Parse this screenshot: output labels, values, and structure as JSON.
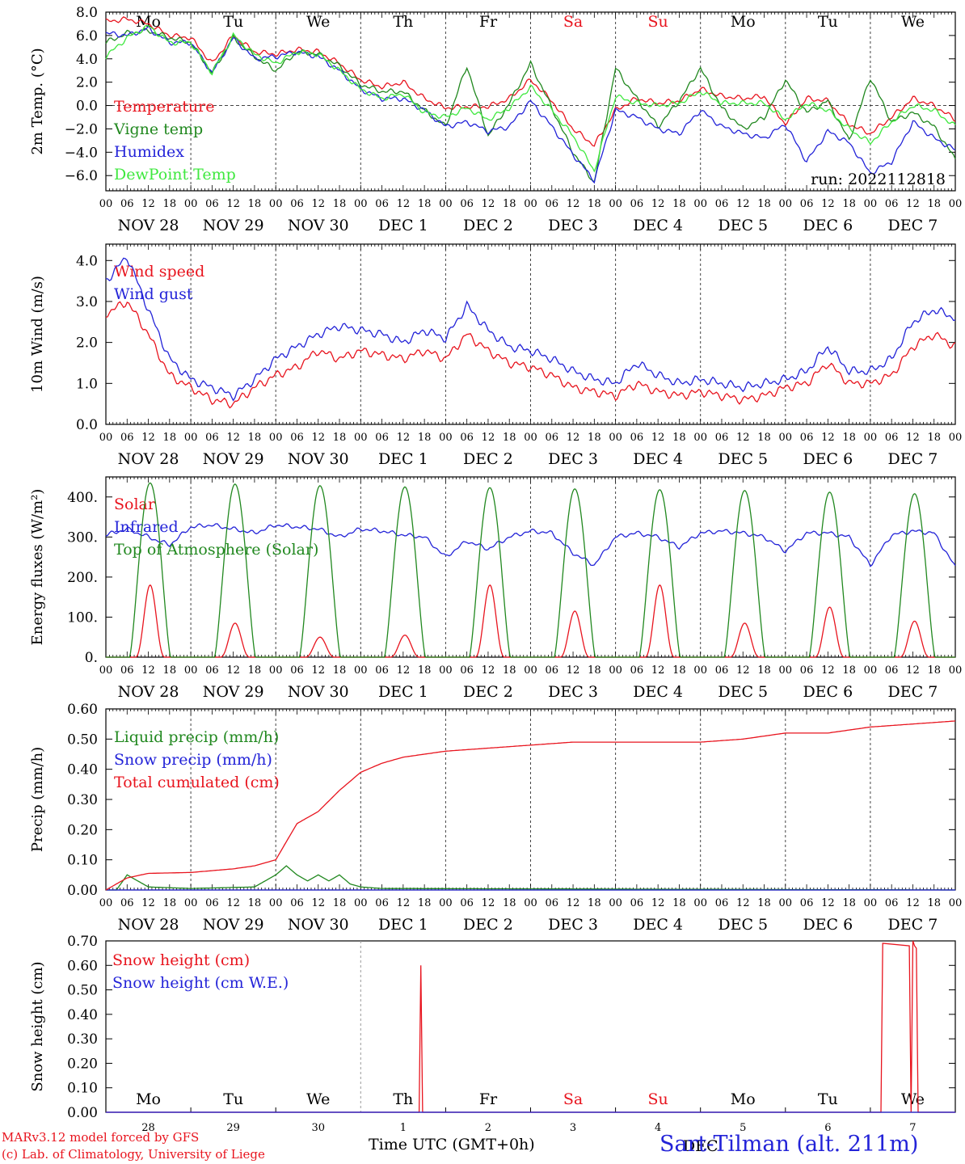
{
  "colors": {
    "red": "#e8141e",
    "green": "#21881f",
    "blue": "#2323d8",
    "lightgreen": "#3fe83f",
    "weekend": "#e8141e"
  },
  "days": [
    "Mo",
    "Tu",
    "We",
    "Th",
    "Fr",
    "Sa",
    "Su",
    "Mo",
    "Tu",
    "We"
  ],
  "weekend_days": [
    "Sa",
    "Su"
  ],
  "date_labels": [
    "NOV 28",
    "NOV 29",
    "NOV 30",
    "DEC  1",
    "DEC  2",
    "DEC  3",
    "DEC  4",
    "DEC  5",
    "DEC  6",
    "DEC  7"
  ],
  "hour_ticks": [
    "00",
    "06",
    "12",
    "18"
  ],
  "hour_end": "00",
  "snow_day_numbers": [
    "28",
    "29",
    "30",
    "1",
    "2",
    "3",
    "4",
    "5",
    "6",
    "7"
  ],
  "dec_label": "DEC",
  "run_label": "run: 2022112818",
  "footer": {
    "model": "MARv3.12 model forced by GFS",
    "credit": "(c) Lab. of Climatology, University of Liege",
    "axis_title": "Time UTC (GMT+0h)",
    "station": "Sart-Tilman (alt. 211m)"
  },
  "chart_data": [
    {
      "type": "line",
      "ylabel": "2m Temp. (°C)",
      "yticks": [
        "8.0",
        "6.0",
        "4.0",
        "2.0",
        "0.0",
        "−2.0",
        "−4.0",
        "−6.0"
      ],
      "ylim": [
        -7.3,
        8.0
      ],
      "x_hours": [
        0,
        6,
        12,
        18,
        24,
        30,
        36,
        42,
        48,
        54,
        60,
        66,
        72,
        78,
        84,
        90,
        96,
        102,
        108,
        114,
        120,
        126,
        132,
        138,
        144,
        150,
        156,
        162,
        168,
        174,
        180,
        186,
        192,
        198,
        204,
        210,
        216,
        222,
        228,
        234,
        240
      ],
      "series": [
        {
          "name": "Temperature",
          "color": "red",
          "values": [
            7.2,
            7.4,
            7.0,
            6.0,
            5.8,
            3.6,
            6.0,
            4.6,
            4.4,
            4.8,
            4.6,
            3.6,
            2.2,
            1.6,
            2.0,
            0.6,
            -0.2,
            -0.1,
            -0.1,
            0.6,
            2.2,
            0.4,
            -2.0,
            -3.4,
            -0.4,
            0.6,
            0.2,
            0.4,
            1.4,
            0.8,
            0.6,
            0.8,
            -1.6,
            0.6,
            0.4,
            -1.6,
            -2.4,
            -1.0,
            0.6,
            0.0,
            -1.2
          ]
        },
        {
          "name": "Vigne temp",
          "color": "green",
          "values": [
            5.4,
            6.2,
            6.4,
            5.8,
            5.4,
            2.8,
            5.8,
            4.2,
            3.0,
            4.6,
            4.4,
            3.4,
            1.8,
            1.2,
            1.2,
            -0.4,
            -1.8,
            3.4,
            -2.6,
            0.2,
            3.6,
            -0.2,
            -4.0,
            -6.6,
            3.2,
            0.6,
            -1.8,
            0.4,
            3.2,
            -0.2,
            -2.0,
            -1.0,
            2.2,
            -0.6,
            0.4,
            -3.0,
            2.4,
            -1.4,
            -0.6,
            -1.8,
            -4.6
          ]
        },
        {
          "name": "Humidex",
          "color": "blue",
          "values": [
            6.2,
            6.0,
            6.6,
            5.4,
            5.4,
            2.8,
            5.8,
            4.0,
            4.2,
            4.6,
            4.2,
            3.0,
            1.4,
            0.6,
            0.6,
            -0.4,
            -1.8,
            -1.4,
            -2.2,
            -1.8,
            0.4,
            -1.8,
            -4.2,
            -6.4,
            -0.4,
            -1.0,
            -2.0,
            -2.4,
            -0.4,
            -1.8,
            -2.4,
            -2.8,
            -1.6,
            -4.8,
            -2.2,
            -3.2,
            -5.8,
            -4.8,
            -1.4,
            -2.8,
            -3.8
          ]
        },
        {
          "name": "DewPoint Temp",
          "color": "lightgreen",
          "values": [
            4.2,
            5.8,
            6.8,
            5.4,
            5.4,
            2.8,
            6.0,
            4.4,
            3.6,
            4.6,
            4.4,
            3.0,
            1.4,
            0.6,
            1.0,
            -0.6,
            -1.0,
            -0.2,
            -1.2,
            -0.2,
            1.6,
            -0.4,
            -2.6,
            -5.6,
            0.8,
            0.2,
            0.0,
            0.2,
            1.2,
            0.2,
            0.2,
            0.2,
            -1.2,
            0.2,
            -0.4,
            -2.0,
            -3.2,
            -1.4,
            0.0,
            -0.4,
            -1.8
          ]
        }
      ]
    },
    {
      "type": "line",
      "ylabel": "10m Wind (m/s)",
      "yticks": [
        "4.0",
        "3.0",
        "2.0",
        "1.0",
        "0.0"
      ],
      "ylim": [
        0,
        4.4
      ],
      "x_hours": [
        0,
        6,
        12,
        18,
        24,
        30,
        36,
        42,
        48,
        54,
        60,
        66,
        72,
        78,
        84,
        90,
        96,
        102,
        108,
        114,
        120,
        126,
        132,
        138,
        144,
        150,
        156,
        162,
        168,
        174,
        180,
        186,
        192,
        198,
        204,
        210,
        216,
        222,
        228,
        234,
        240
      ],
      "series": [
        {
          "name": "Wind speed",
          "color": "red",
          "values": [
            2.7,
            3.0,
            2.2,
            1.2,
            0.9,
            0.6,
            0.5,
            0.9,
            1.2,
            1.4,
            1.8,
            1.6,
            1.8,
            1.7,
            1.6,
            1.8,
            1.6,
            2.2,
            1.8,
            1.5,
            1.4,
            1.2,
            0.9,
            0.8,
            0.7,
            1.0,
            0.8,
            0.7,
            0.8,
            0.7,
            0.6,
            0.7,
            0.9,
            1.0,
            1.5,
            1.0,
            1.0,
            1.2,
            1.9,
            2.2,
            1.9
          ]
        },
        {
          "name": "Wind gust",
          "color": "blue",
          "values": [
            3.5,
            4.1,
            2.8,
            1.6,
            1.1,
            0.9,
            0.7,
            1.1,
            1.6,
            1.9,
            2.2,
            2.4,
            2.3,
            2.2,
            2.0,
            2.3,
            2.1,
            2.9,
            2.3,
            1.9,
            1.8,
            1.6,
            1.3,
            1.1,
            1.0,
            1.5,
            1.2,
            1.0,
            1.1,
            1.0,
            0.9,
            1.0,
            1.1,
            1.3,
            1.9,
            1.3,
            1.3,
            1.6,
            2.5,
            2.8,
            2.6
          ]
        }
      ]
    },
    {
      "type": "line",
      "ylabel": "Energy fluxes (W/m²)",
      "yticks": [
        "400.",
        "300.",
        "200.",
        "100.",
        "0."
      ],
      "ylim": [
        0,
        450
      ],
      "series": [
        {
          "name": "Solar",
          "color": "red",
          "peaks": [
            180,
            85,
            50,
            55,
            180,
            115,
            180,
            85,
            125,
            90
          ]
        },
        {
          "name": "Infrared",
          "color": "blue",
          "x_hours": [
            0,
            6,
            12,
            18,
            24,
            30,
            36,
            42,
            48,
            54,
            60,
            66,
            72,
            78,
            84,
            90,
            96,
            102,
            108,
            114,
            120,
            126,
            132,
            138,
            144,
            150,
            156,
            162,
            168,
            174,
            180,
            186,
            192,
            198,
            204,
            210,
            216,
            222,
            228,
            234,
            240
          ],
          "values": [
            305,
            320,
            300,
            280,
            325,
            330,
            320,
            310,
            330,
            325,
            320,
            300,
            320,
            315,
            305,
            300,
            250,
            290,
            270,
            300,
            315,
            310,
            260,
            230,
            300,
            310,
            300,
            275,
            310,
            315,
            310,
            300,
            265,
            310,
            310,
            300,
            230,
            305,
            315,
            310,
            225
          ]
        },
        {
          "name": "Top of Atmosphere (Solar)",
          "color": "green",
          "peaks": [
            435,
            432,
            428,
            425,
            423,
            420,
            418,
            416,
            412,
            408
          ]
        }
      ]
    },
    {
      "type": "line",
      "ylabel": "Precip (mm/h)",
      "yticks": [
        "0.60",
        "0.50",
        "0.40",
        "0.30",
        "0.20",
        "0.10",
        "0.00"
      ],
      "ylim": [
        0,
        0.6
      ],
      "series": [
        {
          "name": "Liquid precip (mm/h)",
          "color": "green",
          "x_hours": [
            0,
            3,
            6,
            9,
            12,
            24,
            42,
            48,
            51,
            54,
            57,
            60,
            63,
            66,
            69,
            72,
            78,
            240
          ],
          "values": [
            0.0,
            0.0,
            0.05,
            0.03,
            0.01,
            0.005,
            0.01,
            0.05,
            0.08,
            0.05,
            0.03,
            0.05,
            0.03,
            0.05,
            0.02,
            0.01,
            0.005,
            0.0
          ]
        },
        {
          "name": "Snow precip (mm/h)",
          "color": "blue",
          "x_hours": [
            0,
            240
          ],
          "values": [
            0,
            0
          ]
        },
        {
          "name": "Total cumulated (cm)",
          "color": "red",
          "x_hours": [
            0,
            6,
            12,
            24,
            36,
            42,
            48,
            54,
            60,
            66,
            72,
            78,
            84,
            96,
            108,
            120,
            132,
            144,
            156,
            168,
            180,
            192,
            204,
            216,
            228,
            240
          ],
          "values": [
            0.0,
            0.04,
            0.055,
            0.058,
            0.07,
            0.08,
            0.1,
            0.22,
            0.26,
            0.33,
            0.39,
            0.42,
            0.44,
            0.46,
            0.47,
            0.48,
            0.49,
            0.49,
            0.49,
            0.49,
            0.5,
            0.52,
            0.52,
            0.54,
            0.55,
            0.56
          ]
        }
      ]
    },
    {
      "type": "line",
      "ylabel": "Snow height (cm)",
      "yticks": [
        "0.70",
        "0.60",
        "0.50",
        "0.40",
        "0.30",
        "0.20",
        "0.10",
        "0.00"
      ],
      "ylim": [
        0,
        0.7
      ],
      "series": [
        {
          "name": "Snow height (cm)",
          "color": "red",
          "x_hours": [
            0,
            88.5,
            89,
            89.5,
            219,
            219.5,
            227,
            227.5,
            228,
            228.5,
            229,
            229.5,
            240
          ],
          "values": [
            0,
            0,
            0.6,
            0,
            0,
            0.69,
            0.68,
            0.0,
            0.7,
            0.68,
            0.67,
            0,
            0
          ]
        },
        {
          "name": "Snow height (cm W.E.)",
          "color": "blue",
          "x_hours": [
            0,
            240
          ],
          "values": [
            0,
            0
          ]
        }
      ]
    }
  ]
}
